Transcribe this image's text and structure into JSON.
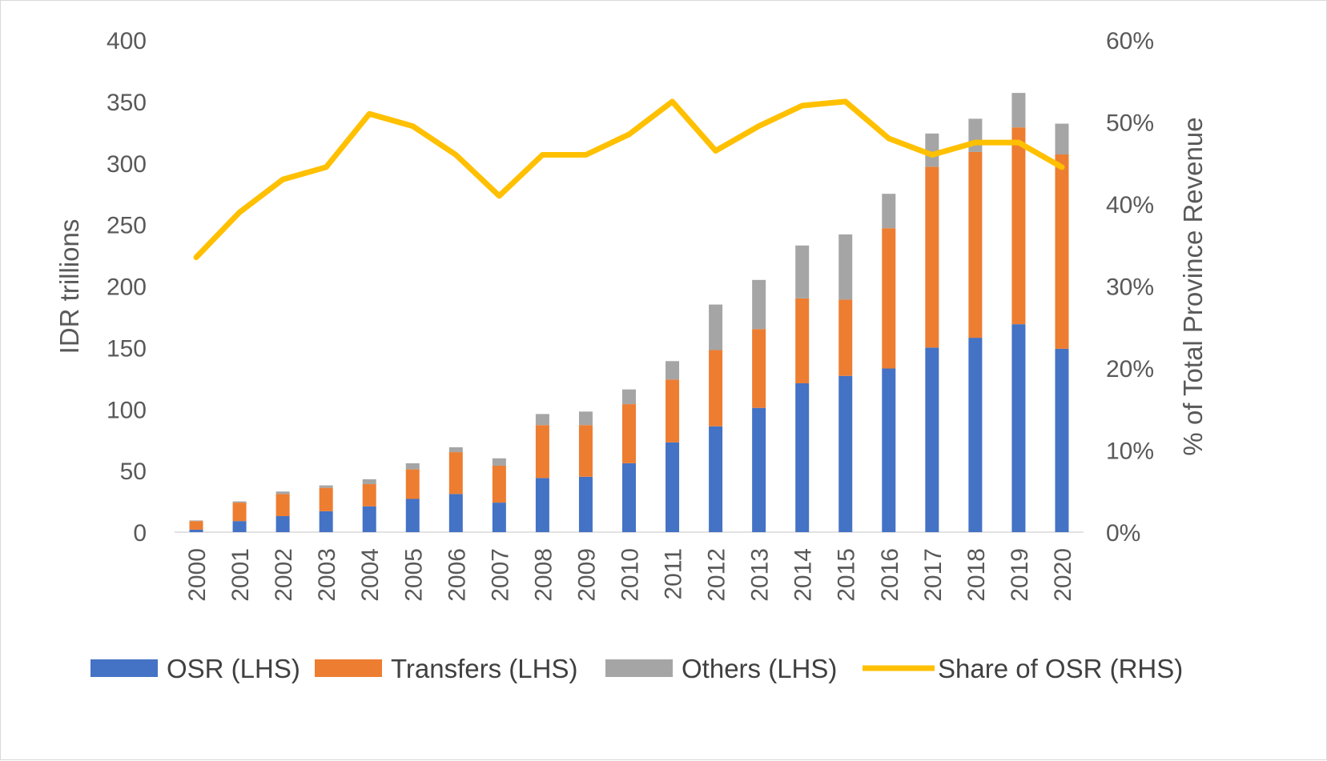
{
  "chart_data": {
    "type": "bar",
    "stacked": true,
    "categories": [
      "2000",
      "2001",
      "2002",
      "2003",
      "2004",
      "2005",
      "2006",
      "2007",
      "2008",
      "2009",
      "2010",
      "2011",
      "2012",
      "2013",
      "2014",
      "2015",
      "2016",
      "2017",
      "2018",
      "2019",
      "2020"
    ],
    "series": [
      {
        "name": "OSR (LHS)",
        "axis": "left",
        "type": "bar",
        "color": "#4472c4",
        "values": [
          2,
          9,
          13,
          17,
          21,
          27,
          31,
          24,
          44,
          45,
          56,
          73,
          86,
          101,
          121,
          127,
          133,
          150,
          158,
          169,
          149
        ]
      },
      {
        "name": "Transfers (LHS)",
        "axis": "left",
        "type": "bar",
        "color": "#ed7d31",
        "values": [
          7,
          15,
          18,
          19,
          18,
          24,
          34,
          30,
          43,
          42,
          48,
          51,
          62,
          64,
          69,
          62,
          114,
          147,
          151,
          160,
          158
        ]
      },
      {
        "name": "Others (LHS)",
        "axis": "left",
        "type": "bar",
        "color": "#a5a5a5",
        "values": [
          0.5,
          1,
          2,
          2,
          4,
          5,
          4,
          6,
          9,
          11,
          12,
          15,
          37,
          40,
          43,
          53,
          28,
          27,
          27,
          28,
          25
        ]
      },
      {
        "name": "Share of OSR (RHS)",
        "axis": "right",
        "type": "line",
        "color": "#ffc000",
        "values": [
          33.5,
          39,
          43,
          44.5,
          51,
          49.5,
          46,
          41,
          46,
          46,
          48.5,
          52.5,
          46.5,
          49.5,
          52,
          52.5,
          48,
          46,
          47.5,
          47.5,
          44.5
        ]
      }
    ],
    "ylabel": "IDR trillions",
    "y2label": "% of Total Province Revenue",
    "ylim": [
      0,
      400
    ],
    "y2lim": [
      0,
      60
    ],
    "yticks": [
      "0",
      "50",
      "100",
      "150",
      "200",
      "250",
      "300",
      "350",
      "400"
    ],
    "y2ticks": [
      "0%",
      "10%",
      "20%",
      "30%",
      "40%",
      "50%",
      "60%"
    ],
    "grid": false,
    "legend_position": "bottom"
  }
}
